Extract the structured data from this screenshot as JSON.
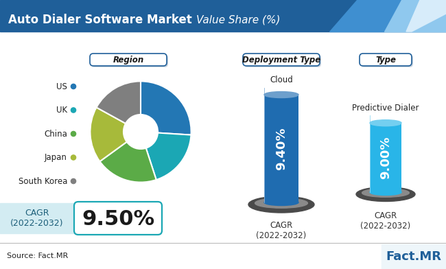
{
  "title": "Auto Dialer Software Market",
  "subtitle": "Value Share (%)",
  "chart_data": [
    {
      "type": "pie",
      "title": "Region",
      "categories": [
        "US",
        "UK",
        "China",
        "Japan",
        "South Korea"
      ],
      "values": [
        26,
        19,
        20,
        18,
        17
      ],
      "colors": [
        "#2377b4",
        "#1ba7b4",
        "#5bab47",
        "#a7ba3a",
        "#7f7f7f"
      ]
    },
    {
      "type": "bar",
      "title": "Deployment Type",
      "categories": [
        "Cloud"
      ],
      "values": [
        9.4
      ],
      "value_labels": [
        "9.40%"
      ],
      "data_labels": true,
      "color": "#1f6cb0",
      "xlabel": "CAGR\n(2022-2032)",
      "ylim": [
        0,
        10
      ],
      "tick_labels": false
    },
    {
      "type": "bar",
      "title": "Type",
      "categories": [
        "Predictive Dialer"
      ],
      "values": [
        9.0
      ],
      "value_labels": [
        "9.00%"
      ],
      "data_labels": true,
      "color": "#29b5e8",
      "xlabel": "CAGR\n(2022-2032)",
      "ylim": [
        0,
        10
      ],
      "tick_labels": false
    }
  ],
  "cagr": {
    "label": "CAGR\n(2022-2032)",
    "value": "9.50%"
  },
  "source": "Source: Fact.MR",
  "logo": "Fact.MR"
}
